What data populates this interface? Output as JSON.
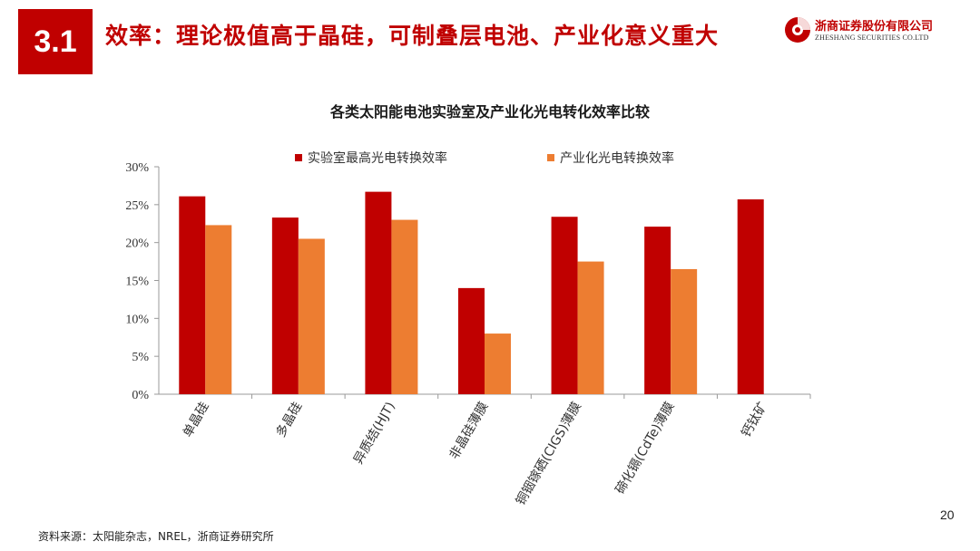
{
  "header": {
    "section_number": "3.1",
    "title": "效率：理论极值高于晶硅，可制叠层电池、产业化意义重大"
  },
  "logo": {
    "name_cn": "浙商证券股份有限公司",
    "name_en": "ZHESHANG SECURITIES CO.LTD",
    "icon": "zheshang-logo-icon"
  },
  "colors": {
    "brand_red": "#c00000",
    "series_lab": "#c00000",
    "series_industrial": "#ed7d31",
    "axis": "#999999"
  },
  "chart_data": {
    "type": "bar",
    "title": "各类太阳能电池实验室及产业化光电转化效率比较",
    "categories": [
      "单晶硅",
      "多晶硅",
      "异质结(HJT)",
      "非晶硅薄膜",
      "铜铟镓硒(CIGS)薄膜",
      "碲化镉(CdTe)薄膜",
      "钙钛矿"
    ],
    "series": [
      {
        "name": "实验室最高光电转换效率",
        "values": [
          26.1,
          23.3,
          26.7,
          14.0,
          23.4,
          22.1,
          25.7
        ]
      },
      {
        "name": "产业化光电转换效率",
        "values": [
          22.3,
          20.5,
          23.0,
          8.0,
          17.5,
          16.5,
          null
        ]
      }
    ],
    "ylim": [
      0,
      30
    ],
    "yticks": [
      "0%",
      "5%",
      "10%",
      "15%",
      "20%",
      "25%",
      "30%"
    ],
    "xlabel": "",
    "ylabel": "",
    "legend_position": "top",
    "grid": false
  },
  "footer": {
    "source": "资料来源：太阳能杂志，NREL，浙商证券研究所",
    "page_number": "20"
  }
}
